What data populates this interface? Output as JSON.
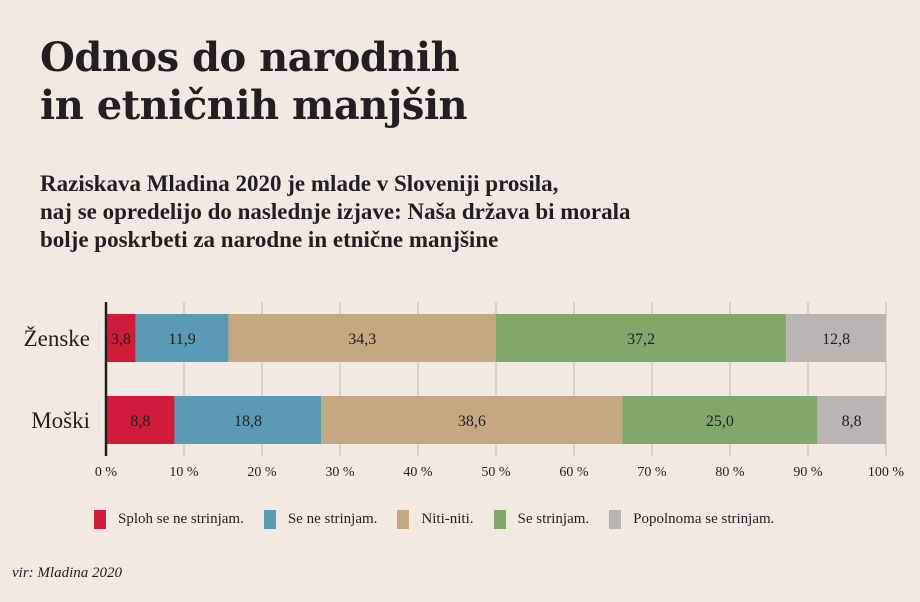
{
  "title_lines": [
    "Odnos do narodnih",
    "in etničnih manjšin"
  ],
  "subtitle_lines": [
    "Raziskava Mladina 2020 je mlade v Sloveniji prosila,",
    "naj se opredelijo do naslednje izjave: Naša država bi morala",
    "bolje poskrbeti za narodne in etnične manjšine"
  ],
  "source": "vir: Mladina 2020",
  "chart_data": {
    "type": "bar",
    "orientation": "horizontal",
    "stacked": true,
    "title": "Odnos do narodnih in etničnih manjšin",
    "categories": [
      "Ženske",
      "Moški"
    ],
    "series": [
      {
        "name": "Sploh se ne strinjam.",
        "color": "#cf1c3a",
        "values": [
          3.8,
          8.8
        ],
        "labels": [
          "3,8",
          "8,8"
        ]
      },
      {
        "name": "Se ne strinjam.",
        "color": "#5b9ab5",
        "values": [
          11.9,
          18.8
        ],
        "labels": [
          "11,9",
          "18,8"
        ]
      },
      {
        "name": "Niti-niti.",
        "color": "#c4a882",
        "values": [
          34.3,
          38.6
        ],
        "labels": [
          "34,3",
          "38,6"
        ]
      },
      {
        "name": "Se strinjam.",
        "color": "#80a86a",
        "values": [
          37.2,
          25.0
        ],
        "labels": [
          "37,2",
          "25,0"
        ]
      },
      {
        "name": "Popolnoma se strinjam.",
        "color": "#bbb5b2",
        "values": [
          12.8,
          8.8
        ],
        "labels": [
          "12,8",
          "8,8"
        ]
      }
    ],
    "xlabel": "",
    "ylabel": "",
    "xlim": [
      0,
      100
    ],
    "xticks": [
      0,
      10,
      20,
      30,
      40,
      50,
      60,
      70,
      80,
      90,
      100
    ],
    "xtick_labels": [
      "0 %",
      "10 %",
      "20 %",
      "30 %",
      "40 %",
      "50 %",
      "60 %",
      "70 %",
      "80 %",
      "90 %",
      "100 %"
    ],
    "grid": true,
    "legend_position": "bottom"
  }
}
